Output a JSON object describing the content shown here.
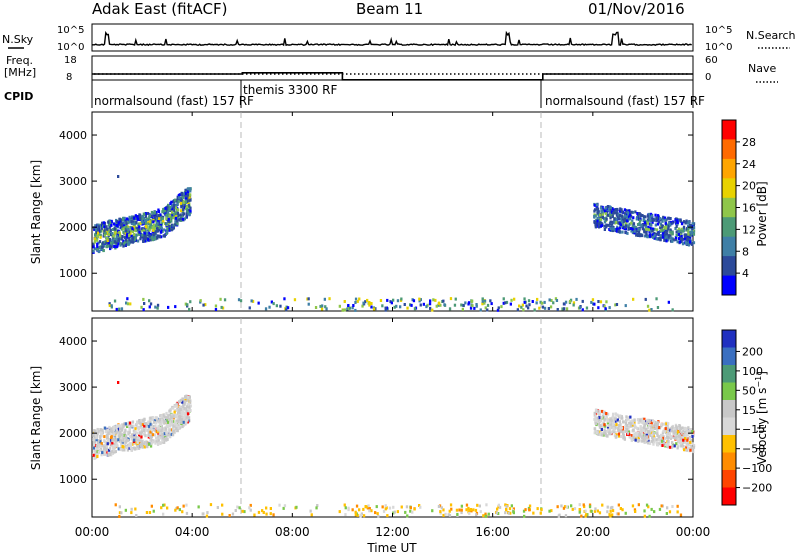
{
  "header": {
    "site": "Adak East (fitACF)",
    "beam": "Beam 11",
    "date": "01/Nov/2016"
  },
  "top_panels": {
    "nsky_label": "N.Sky",
    "nsearch_label": "N.Search",
    "noise_ticks": [
      "10^5",
      "10^0"
    ],
    "freq_label_1": "Freq.",
    "freq_label_2": "[MHz]",
    "freq_ticks": [
      "18",
      "8"
    ],
    "nave_label": "Nave",
    "nave_ticks": [
      "60",
      "0"
    ],
    "cpid_label": "CPID"
  },
  "cpid_segments": [
    {
      "label": "normalsound (fast) 157 RF",
      "start_hour": 0
    },
    {
      "label": "themis 3300 RF",
      "start_hour": 6
    },
    {
      "label": "normalsound (fast) 157 RF",
      "start_hour": 18
    }
  ],
  "colors": {
    "power": [
      "#0000ff",
      "#2c4a9a",
      "#3f7fa6",
      "#4c9a76",
      "#8fc64a",
      "#e8d200",
      "#ffa500",
      "#ff6a00",
      "#ff0000"
    ],
    "velocity": [
      "#2030c0",
      "#3a6fc0",
      "#4c9a76",
      "#79c84a",
      "#c8c8c8",
      "#d8d8d8",
      "#ffc000",
      "#ff8c00",
      "#ff4500",
      "#ff0000"
    ]
  },
  "chart_data": [
    {
      "type": "heatmap",
      "title": "Power",
      "ylabel": "Slant Range [km]",
      "xlabel": "Time UT",
      "x_ticks": [
        "00:00",
        "04:00",
        "08:00",
        "12:00",
        "16:00",
        "20:00",
        "00:00"
      ],
      "x_range_hours": [
        0,
        24
      ],
      "ylim": [
        180,
        4500
      ],
      "y_ticks": [
        1000,
        2000,
        3000,
        4000
      ],
      "colorbar": {
        "label": "Power [dB]",
        "ticks": [
          "4",
          "8",
          "12",
          "16",
          "20",
          "24",
          "28"
        ],
        "range": [
          0,
          30
        ]
      },
      "echo_regions": [
        {
          "hours": [
            0.0,
            3.9
          ],
          "range_km": [
            1450,
            2700
          ],
          "dominant": "blue with green/yellow core near 1800 km"
        },
        {
          "hours": [
            20.0,
            24.0
          ],
          "range_km": [
            1500,
            2500
          ],
          "dominant": "blue with green core near 2000 km"
        },
        {
          "hours": [
            1.0,
            23.0
          ],
          "range_km": [
            180,
            450
          ],
          "dominant": "sparse near-range scatter"
        }
      ]
    },
    {
      "type": "heatmap",
      "title": "Velocity",
      "ylabel": "Slant Range [km]",
      "xlabel": "Time UT",
      "x_ticks": [
        "00:00",
        "04:00",
        "08:00",
        "12:00",
        "16:00",
        "20:00",
        "00:00"
      ],
      "x_range_hours": [
        0,
        24
      ],
      "ylim": [
        180,
        4500
      ],
      "y_ticks": [
        1000,
        2000,
        3000,
        4000
      ],
      "colorbar": {
        "label": "Velocity [m s^-1]",
        "ticks": [
          "200",
          "100",
          "50",
          "15",
          "-15",
          "-50",
          "-100",
          "-200"
        ],
        "range": [
          -250,
          250
        ]
      },
      "echo_regions": [
        {
          "hours": [
            0.0,
            3.9
          ],
          "range_km": [
            1450,
            2700
          ],
          "dominant": "grey (ground scatter) with sparse colors"
        },
        {
          "hours": [
            20.0,
            24.0
          ],
          "range_km": [
            1500,
            2500
          ],
          "dominant": "grey with sparse colors"
        },
        {
          "hours": [
            1.0,
            23.0
          ],
          "range_km": [
            180,
            450
          ],
          "dominant": "sparse orange/yellow near-range scatter"
        }
      ]
    }
  ]
}
